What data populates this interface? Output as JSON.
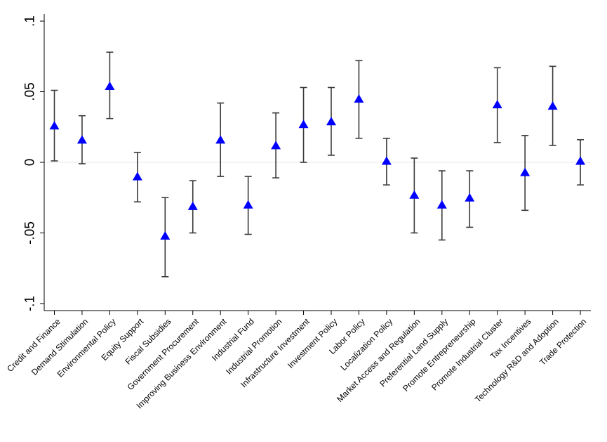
{
  "chart_data": {
    "type": "scatter",
    "title": "",
    "xlabel": "",
    "ylabel": "",
    "ylim": [
      -0.105,
      0.105
    ],
    "yticks": [
      {
        "value": 0.1,
        "label": ".1"
      },
      {
        "value": 0.05,
        "label": ".05"
      },
      {
        "value": 0,
        "label": "0"
      },
      {
        "value": -0.05,
        "label": "-.05"
      },
      {
        "value": -0.1,
        "label": "-.1"
      }
    ],
    "categories": [
      "Credit and Finance",
      "Demand Stimulation",
      "Environmental Policy",
      "Equity Support",
      "Fiscal Subsidies",
      "Government Procurement",
      "Improving Business Environment",
      "Industrial Fund",
      "Industrial Promotion",
      "Infrastructure Investment",
      "Investment Policy",
      "Labor Policy",
      "Localization Policy",
      "Market Access and Regulation",
      "Preferential Land Supply",
      "Promote Entrepreneurship",
      "Promote Industrial Cluster",
      "Tax Incentives",
      "Technology R&D and Adoption",
      "Trade Protection"
    ],
    "series": [
      {
        "estimate": [
          0.026,
          0.016,
          0.054,
          -0.01,
          -0.052,
          -0.031,
          0.016,
          -0.03,
          0.012,
          0.027,
          0.029,
          0.045,
          0.001,
          -0.023,
          -0.03,
          -0.025,
          0.041,
          -0.007,
          0.04,
          0.001
        ],
        "ci_low": [
          0.001,
          -0.001,
          0.031,
          -0.028,
          -0.081,
          -0.05,
          -0.01,
          -0.051,
          -0.011,
          0.0,
          0.005,
          0.017,
          -0.016,
          -0.05,
          -0.055,
          -0.046,
          0.014,
          -0.034,
          0.012,
          -0.016
        ],
        "ci_high": [
          0.051,
          0.033,
          0.078,
          0.007,
          -0.025,
          -0.013,
          0.042,
          -0.01,
          0.035,
          0.053,
          0.053,
          0.072,
          0.017,
          0.003,
          -0.006,
          -0.006,
          0.067,
          0.019,
          0.068,
          0.016
        ],
        "marker": "triangle",
        "color": "#0000ff",
        "errorbar_color": "#3a3a3a"
      }
    ],
    "grid": false,
    "reference_line": 0
  }
}
